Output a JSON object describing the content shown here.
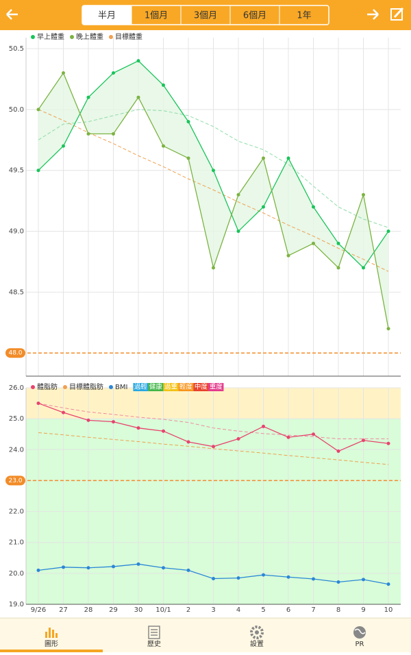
{
  "header": {
    "tabs": [
      "半月",
      "1個月",
      "3個月",
      "6個月",
      "1年"
    ],
    "selected_tab": 0
  },
  "chart_data": [
    {
      "type": "line",
      "ylim": [
        47.81,
        50.59
      ],
      "yticks": [
        50.5,
        {
          "value": 50,
          "label": "50.0"
        },
        49.5,
        {
          "value": 49,
          "label": "49.0"
        },
        48.5
      ],
      "grid": true,
      "series": [
        {
          "name": "早上體重",
          "color": "#19c45a",
          "values": [
            49.5,
            49.7,
            50.1,
            50.3,
            50.4,
            50.2,
            49.9,
            49.5,
            49.0,
            49.2,
            49.6,
            49.2,
            48.9,
            48.7,
            49.0
          ]
        },
        {
          "name": "晚上體重",
          "color": "#7cb342",
          "values": [
            50.0,
            50.3,
            49.8,
            49.8,
            50.1,
            49.7,
            49.6,
            48.7,
            49.3,
            49.6,
            48.8,
            48.9,
            48.7,
            49.3,
            48.2
          ]
        },
        {
          "name": "目標體重",
          "color": "#f0a050",
          "dashed": true,
          "values": [
            50.0,
            49.91,
            49.81,
            49.72,
            49.62,
            49.53,
            49.43,
            49.34,
            49.24,
            49.15,
            49.05,
            48.96,
            48.86,
            48.77,
            48.67
          ]
        },
        {
          "color": "#8fdca8",
          "dashed": true,
          "values": [
            49.75,
            49.88,
            49.9,
            49.95,
            50.0,
            49.99,
            49.95,
            49.86,
            49.74,
            49.67,
            49.55,
            49.37,
            49.2,
            49.1,
            49.03
          ]
        }
      ],
      "fill_between": [
        0,
        1
      ],
      "fill_color": "#e4f6e4",
      "target": {
        "value": 48,
        "label": "48.0",
        "color": "#f28c28"
      }
    },
    {
      "type": "line",
      "ylim": [
        19,
        26
      ],
      "yticks": [
        {
          "value": 26,
          "label": "26.0"
        },
        {
          "value": 25,
          "label": "25.0"
        },
        {
          "value": 24,
          "label": "24.0"
        },
        {
          "value": 23,
          "label": "23.0"
        },
        {
          "value": 22,
          "label": "22.0"
        },
        {
          "value": 21,
          "label": "21.0"
        },
        {
          "value": 20,
          "label": "20.0"
        },
        {
          "value": 19,
          "label": "19.0"
        }
      ],
      "grid": true,
      "categories": [
        "9/26",
        "27",
        "28",
        "29",
        "30",
        "10/1",
        "2",
        "3",
        "4",
        "5",
        "6",
        "7",
        "8",
        "9",
        "10"
      ],
      "bands": [
        {
          "from": 19,
          "to": 25,
          "color": "#d8fdd8"
        },
        {
          "from": 25,
          "to": 26,
          "color": "#fff3c6"
        }
      ],
      "series": [
        {
          "name": "體脂肪",
          "color": "#e8436f",
          "values": [
            25.5,
            25.2,
            24.95,
            24.9,
            24.7,
            24.6,
            24.25,
            24.1,
            24.35,
            24.75,
            24.4,
            24.5,
            23.95,
            24.3,
            24.2
          ]
        },
        {
          "name": "目標體脂肪",
          "color": "#f0a050",
          "dashed": true,
          "values": [
            24.55,
            24.48,
            24.4,
            24.33,
            24.26,
            24.18,
            24.11,
            24.03,
            23.96,
            23.89,
            23.81,
            23.74,
            23.67,
            23.59,
            23.52
          ]
        },
        {
          "name": "BMI",
          "color": "#2c86d8",
          "values": [
            20.1,
            20.2,
            20.18,
            20.22,
            20.3,
            20.18,
            20.1,
            19.83,
            19.85,
            19.95,
            19.88,
            19.82,
            19.72,
            19.8,
            19.65
          ]
        },
        {
          "color": "#f08aa0",
          "dashed": true,
          "values": [
            25.5,
            25.35,
            25.22,
            25.14,
            25.05,
            24.98,
            24.88,
            24.7,
            24.6,
            24.52,
            24.47,
            24.42,
            24.35,
            24.35,
            24.35
          ]
        }
      ],
      "bmi_levels": [
        {
          "label": "過輕",
          "color": "#29a8e0"
        },
        {
          "label": "健康",
          "color": "#43b649"
        },
        {
          "label": "過重",
          "color": "#f3c316"
        },
        {
          "label": "輕度",
          "color": "#f7941d"
        },
        {
          "label": "中度",
          "color": "#e8432e"
        },
        {
          "label": "重度",
          "color": "#e33a8c"
        }
      ],
      "target": {
        "value": 23,
        "label": "23.0",
        "color": "#f28c28"
      }
    }
  ],
  "nav": {
    "items": [
      "圖形",
      "歷史",
      "設置",
      "PR"
    ],
    "active": 0
  }
}
